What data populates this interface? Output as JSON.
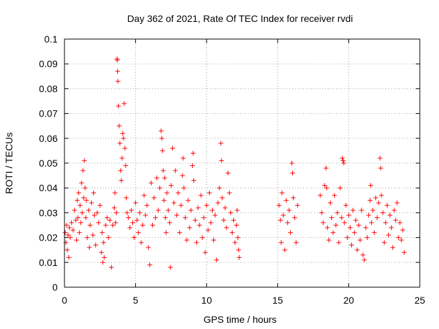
{
  "chart_data": {
    "type": "scatter",
    "title": "Day 362 of 2021, Rate Of TEC Index for receiver rvdi",
    "xlabel": "GPS time / hours",
    "ylabel": "ROTI / TECUs",
    "xlim": [
      0,
      25
    ],
    "ylim": [
      0,
      0.1
    ],
    "xticks": [
      0,
      5,
      10,
      15,
      20,
      25
    ],
    "xtick_labels": [
      "0",
      "5",
      "10",
      "15",
      "20",
      "25"
    ],
    "yticks": [
      0,
      0.01,
      0.02,
      0.03,
      0.04,
      0.05,
      0.06,
      0.07,
      0.08,
      0.09,
      0.1
    ],
    "ytick_labels": [
      "0",
      "0.01",
      "0.02",
      "0.03",
      "0.04",
      "0.05",
      "0.06",
      "0.07",
      "0.08",
      "0.09",
      "0.1"
    ],
    "grid": true,
    "marker": "+",
    "color": "#ff0000",
    "series": [
      {
        "points": [
          [
            0.05,
            0.022
          ],
          [
            0.1,
            0.018
          ],
          [
            0.15,
            0.025
          ],
          [
            0.2,
            0.015
          ],
          [
            0.25,
            0.021
          ],
          [
            0.3,
            0.012
          ],
          [
            0.35,
            0.024
          ],
          [
            0.4,
            0.02
          ],
          [
            0.5,
            0.026
          ],
          [
            0.6,
            0.023
          ],
          [
            0.7,
            0.031
          ],
          [
            0.8,
            0.027
          ],
          [
            0.85,
            0.019
          ],
          [
            0.9,
            0.035
          ],
          [
            0.95,
            0.028
          ],
          [
            1.0,
            0.038
          ],
          [
            1.05,
            0.022
          ],
          [
            1.1,
            0.033
          ],
          [
            1.15,
            0.026
          ],
          [
            1.2,
            0.042
          ],
          [
            1.25,
            0.03
          ],
          [
            1.3,
            0.047
          ],
          [
            1.35,
            0.036
          ],
          [
            1.4,
            0.051
          ],
          [
            1.45,
            0.04
          ],
          [
            1.5,
            0.028
          ],
          [
            1.55,
            0.035
          ],
          [
            1.6,
            0.02
          ],
          [
            1.7,
            0.031
          ],
          [
            1.75,
            0.016
          ],
          [
            1.8,
            0.025
          ],
          [
            1.9,
            0.034
          ],
          [
            2.0,
            0.021
          ],
          [
            2.05,
            0.038
          ],
          [
            2.1,
            0.029
          ],
          [
            2.2,
            0.017
          ],
          [
            2.3,
            0.03
          ],
          [
            2.4,
            0.026
          ],
          [
            2.5,
            0.033
          ],
          [
            2.6,
            0.014
          ],
          [
            2.65,
            0.022
          ],
          [
            2.7,
            0.01
          ],
          [
            2.75,
            0.018
          ],
          [
            2.8,
            0.012
          ],
          [
            2.9,
            0.025
          ],
          [
            3.0,
            0.028
          ],
          [
            3.1,
            0.02
          ],
          [
            3.2,
            0.027
          ],
          [
            3.3,
            0.008
          ],
          [
            3.4,
            0.025
          ],
          [
            3.5,
            0.032
          ],
          [
            3.55,
            0.038
          ],
          [
            3.6,
            0.026
          ],
          [
            3.65,
            0.03
          ],
          [
            3.7,
            0.092
          ],
          [
            3.72,
            0.0915
          ],
          [
            3.74,
            0.087
          ],
          [
            3.76,
            0.083
          ],
          [
            3.8,
            0.073
          ],
          [
            3.85,
            0.065
          ],
          [
            3.9,
            0.058
          ],
          [
            3.95,
            0.047
          ],
          [
            4.0,
            0.043
          ],
          [
            4.05,
            0.052
          ],
          [
            4.1,
            0.062
          ],
          [
            4.15,
            0.06
          ],
          [
            4.2,
            0.074
          ],
          [
            4.25,
            0.056
          ],
          [
            4.3,
            0.049
          ],
          [
            4.35,
            0.036
          ],
          [
            4.4,
            0.03
          ],
          [
            4.5,
            0.028
          ],
          [
            4.6,
            0.024
          ],
          [
            4.7,
            0.031
          ],
          [
            4.8,
            0.026
          ],
          [
            4.9,
            0.02
          ],
          [
            5.0,
            0.034
          ],
          [
            5.1,
            0.027
          ],
          [
            5.2,
            0.022
          ],
          [
            5.3,
            0.03
          ],
          [
            5.4,
            0.018
          ],
          [
            5.5,
            0.025
          ],
          [
            5.6,
            0.037
          ],
          [
            5.7,
            0.029
          ],
          [
            5.8,
            0.033
          ],
          [
            5.9,
            0.016
          ],
          [
            6.0,
            0.009
          ],
          [
            6.1,
            0.042
          ],
          [
            6.2,
            0.025
          ],
          [
            6.3,
            0.036
          ],
          [
            6.4,
            0.028
          ],
          [
            6.5,
            0.044
          ],
          [
            6.6,
            0.031
          ],
          [
            6.7,
            0.04
          ],
          [
            6.8,
            0.063
          ],
          [
            6.85,
            0.06
          ],
          [
            6.9,
            0.055
          ],
          [
            6.95,
            0.047
          ],
          [
            7.0,
            0.035
          ],
          [
            7.05,
            0.044
          ],
          [
            7.1,
            0.028
          ],
          [
            7.15,
            0.022
          ],
          [
            7.2,
            0.038
          ],
          [
            7.3,
            0.031
          ],
          [
            7.4,
            0.026
          ],
          [
            7.45,
            0.008
          ],
          [
            7.5,
            0.041
          ],
          [
            7.6,
            0.056
          ],
          [
            7.7,
            0.034
          ],
          [
            7.8,
            0.047
          ],
          [
            7.9,
            0.029
          ],
          [
            8.0,
            0.038
          ],
          [
            8.1,
            0.022
          ],
          [
            8.2,
            0.033
          ],
          [
            8.3,
            0.045
          ],
          [
            8.35,
            0.052
          ],
          [
            8.4,
            0.04
          ],
          [
            8.5,
            0.028
          ],
          [
            8.6,
            0.019
          ],
          [
            8.7,
            0.035
          ],
          [
            8.8,
            0.024
          ],
          [
            8.9,
            0.031
          ],
          [
            9.0,
            0.049
          ],
          [
            9.05,
            0.054
          ],
          [
            9.1,
            0.043
          ],
          [
            9.2,
            0.027
          ],
          [
            9.3,
            0.018
          ],
          [
            9.4,
            0.032
          ],
          [
            9.5,
            0.025
          ],
          [
            9.6,
            0.037
          ],
          [
            9.7,
            0.02
          ],
          [
            9.8,
            0.028
          ],
          [
            9.9,
            0.014
          ],
          [
            10.0,
            0.033
          ],
          [
            10.1,
            0.023
          ],
          [
            10.2,
            0.038
          ],
          [
            10.3,
            0.026
          ],
          [
            10.4,
            0.031
          ],
          [
            10.5,
            0.019
          ],
          [
            10.6,
            0.029
          ],
          [
            10.7,
            0.011
          ],
          [
            10.8,
            0.034
          ],
          [
            10.9,
            0.04
          ],
          [
            11.0,
            0.058
          ],
          [
            11.05,
            0.051
          ],
          [
            11.1,
            0.036
          ],
          [
            11.2,
            0.027
          ],
          [
            11.3,
            0.032
          ],
          [
            11.4,
            0.024
          ],
          [
            11.5,
            0.046
          ],
          [
            11.6,
            0.038
          ],
          [
            11.7,
            0.03
          ],
          [
            11.8,
            0.022
          ],
          [
            11.9,
            0.027
          ],
          [
            12.0,
            0.018
          ],
          [
            12.1,
            0.025
          ],
          [
            12.15,
            0.031
          ],
          [
            12.2,
            0.02
          ],
          [
            12.25,
            0.015
          ],
          [
            12.3,
            0.012
          ],
          [
            15.1,
            0.033
          ],
          [
            15.2,
            0.027
          ],
          [
            15.25,
            0.018
          ],
          [
            15.3,
            0.038
          ],
          [
            15.4,
            0.029
          ],
          [
            15.5,
            0.015
          ],
          [
            15.6,
            0.035
          ],
          [
            15.7,
            0.026
          ],
          [
            15.8,
            0.031
          ],
          [
            15.9,
            0.022
          ],
          [
            16.0,
            0.05
          ],
          [
            16.05,
            0.046
          ],
          [
            16.1,
            0.036
          ],
          [
            16.2,
            0.028
          ],
          [
            16.3,
            0.018
          ],
          [
            16.4,
            0.033
          ],
          [
            18.0,
            0.037
          ],
          [
            18.1,
            0.03
          ],
          [
            18.2,
            0.026
          ],
          [
            18.3,
            0.041
          ],
          [
            18.4,
            0.048
          ],
          [
            18.45,
            0.04
          ],
          [
            18.5,
            0.024
          ],
          [
            18.6,
            0.019
          ],
          [
            18.7,
            0.034
          ],
          [
            18.8,
            0.028
          ],
          [
            18.9,
            0.022
          ],
          [
            19.0,
            0.037
          ],
          [
            19.1,
            0.025
          ],
          [
            19.2,
            0.03
          ],
          [
            19.3,
            0.018
          ],
          [
            19.4,
            0.04
          ],
          [
            19.5,
            0.028
          ],
          [
            19.55,
            0.052
          ],
          [
            19.6,
            0.051
          ],
          [
            19.65,
            0.05
          ],
          [
            19.7,
            0.026
          ],
          [
            19.8,
            0.033
          ],
          [
            19.9,
            0.02
          ],
          [
            20.0,
            0.029
          ],
          [
            20.1,
            0.024
          ],
          [
            20.2,
            0.017
          ],
          [
            20.3,
            0.031
          ],
          [
            20.4,
            0.022
          ],
          [
            20.5,
            0.027
          ],
          [
            20.6,
            0.015
          ],
          [
            20.7,
            0.025
          ],
          [
            20.8,
            0.019
          ],
          [
            20.9,
            0.031
          ],
          [
            21.0,
            0.013
          ],
          [
            21.1,
            0.011
          ],
          [
            21.2,
            0.024
          ],
          [
            21.3,
            0.02
          ],
          [
            21.4,
            0.029
          ],
          [
            21.5,
            0.035
          ],
          [
            21.55,
            0.041
          ],
          [
            21.6,
            0.026
          ],
          [
            21.7,
            0.031
          ],
          [
            21.8,
            0.022
          ],
          [
            21.9,
            0.036
          ],
          [
            22.0,
            0.028
          ],
          [
            22.1,
            0.034
          ],
          [
            22.2,
            0.052
          ],
          [
            22.25,
            0.048
          ],
          [
            22.3,
            0.037
          ],
          [
            22.4,
            0.03
          ],
          [
            22.5,
            0.018
          ],
          [
            22.6,
            0.026
          ],
          [
            22.7,
            0.033
          ],
          [
            22.8,
            0.021
          ],
          [
            22.9,
            0.029
          ],
          [
            23.0,
            0.024
          ],
          [
            23.1,
            0.016
          ],
          [
            23.2,
            0.031
          ],
          [
            23.3,
            0.027
          ],
          [
            23.4,
            0.034
          ],
          [
            23.5,
            0.02
          ],
          [
            23.6,
            0.026
          ],
          [
            23.7,
            0.019
          ],
          [
            23.8,
            0.023
          ],
          [
            23.9,
            0.014
          ]
        ]
      }
    ]
  }
}
